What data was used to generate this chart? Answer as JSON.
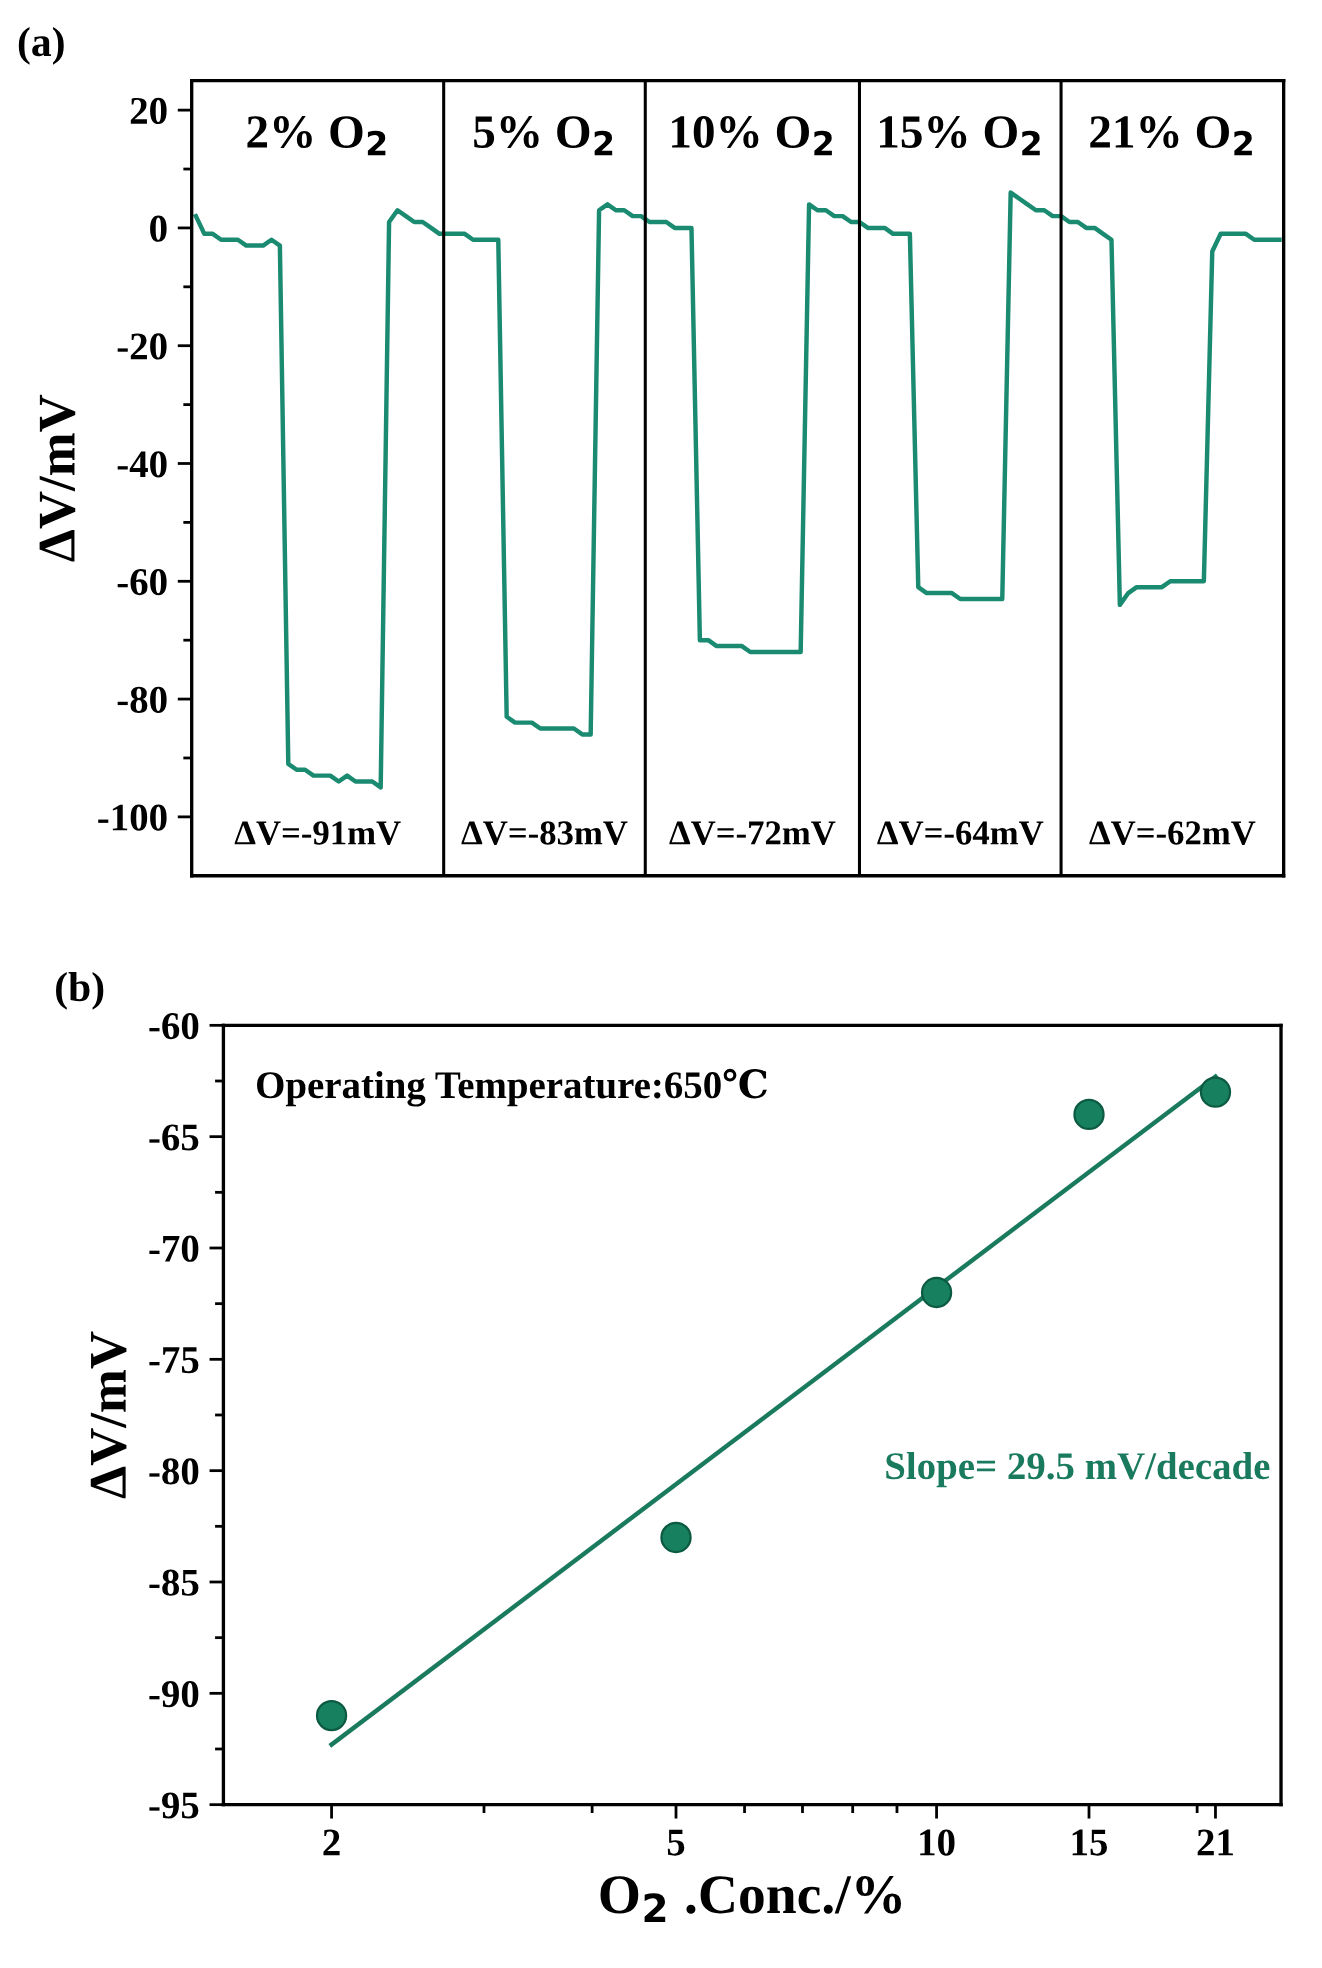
{
  "chart_data": [
    {
      "type": "line",
      "title": "(a)",
      "ylabel": "ΔV/mV",
      "categories": [
        null,
        null,
        null,
        null,
        null,
        null,
        null,
        null,
        null,
        null,
        null,
        null,
        null,
        null,
        null,
        null,
        null,
        null,
        null,
        null,
        null,
        null,
        null,
        null,
        null,
        null,
        null,
        null,
        null,
        null,
        null,
        null,
        null,
        null,
        null,
        null,
        null,
        null,
        null,
        null,
        null,
        null,
        null,
        null,
        null,
        null,
        null,
        null,
        null,
        null,
        null,
        null,
        null,
        null,
        null,
        null,
        null,
        null,
        null,
        null,
        null,
        null,
        null,
        null,
        null,
        null,
        null,
        null,
        null,
        null,
        null,
        null,
        null,
        null,
        null,
        null,
        null,
        null,
        null,
        null,
        null,
        null,
        null,
        null,
        null,
        null,
        null,
        null,
        null,
        null,
        null,
        null,
        null,
        null,
        null,
        null,
        null,
        null,
        null,
        null,
        null,
        null,
        null,
        null,
        null,
        null,
        null,
        null,
        null,
        null,
        null,
        null,
        null,
        null,
        null,
        null,
        null,
        null,
        null,
        null,
        null,
        null,
        null,
        null,
        null,
        null,
        null,
        null,
        null,
        null
      ],
      "series": [
        {
          "color": "#1a8a70",
          "values": [
            2,
            -1,
            -1,
            -2,
            -2,
            -2,
            -3,
            -3,
            -3,
            -2,
            -3,
            -91,
            -92,
            -92,
            -93,
            -93,
            -93,
            -94,
            -93,
            -94,
            -94,
            -94,
            -95,
            1,
            3,
            2,
            1,
            1,
            0,
            -1,
            -1,
            -1,
            -1,
            -2,
            -2,
            -2,
            -2,
            -83,
            -84,
            -84,
            -84,
            -85,
            -85,
            -85,
            -85,
            -85,
            -86,
            -86,
            3,
            4,
            3,
            3,
            2,
            2,
            1,
            1,
            1,
            0,
            0,
            0,
            -70,
            -70,
            -71,
            -71,
            -71,
            -71,
            -72,
            -72,
            -72,
            -72,
            -72,
            -72,
            -72,
            4,
            3,
            3,
            2,
            2,
            1,
            1,
            0,
            0,
            0,
            -1,
            -1,
            -1,
            -61,
            -62,
            -62,
            -62,
            -62,
            -63,
            -63,
            -63,
            -63,
            -63,
            -63,
            6,
            5,
            4,
            3,
            3,
            2,
            2,
            1,
            1,
            0,
            0,
            -1,
            -2,
            -64,
            -62,
            -61,
            -61,
            -61,
            -61,
            -60,
            -60,
            -60,
            -60,
            -60,
            -4,
            -1,
            -1,
            -1,
            -1,
            -2,
            -2,
            -2,
            -2
          ]
        }
      ],
      "ylim": [
        -110,
        25
      ],
      "yticks": [
        -100,
        -80,
        -60,
        -40,
        -20,
        0,
        20,
        {
          "value": -90,
          "label": null
        },
        {
          "value": -70,
          "label": null
        },
        {
          "value": -50,
          "label": null
        },
        {
          "value": -30,
          "label": null
        },
        {
          "value": -10,
          "label": null
        },
        {
          "value": 10,
          "label": null
        }
      ],
      "annotations": [
        "2% O$_{2}$",
        "5% O$_{2}$",
        "10% O$_{2}$",
        "15% O$_{2}$",
        "21% O$_{2}$",
        "ΔV=-91mV",
        "ΔV=-83mV",
        "ΔV=-72mV",
        "ΔV=-64mV",
        "ΔV=-62mV"
      ],
      "tick_labels": "y",
      "grid": false,
      "legend": false,
      "marker": "none",
      "line_style": "solid"
    },
    {
      "type": "scatter",
      "title": "(b)",
      "xlabel": "O$_{2}$ .Conc./%",
      "ylabel": "ΔV/mV",
      "x": [
        2,
        5,
        10,
        15,
        21
      ],
      "series": [
        {
          "type": "scatter",
          "color": "#16805f",
          "values": [
            -91,
            -83,
            -72,
            -64,
            -63
          ]
        },
        {
          "type": "line",
          "color": "#1a7a5e",
          "x": [
            2,
            21
          ],
          "values": [
            -92.3,
            -62.3
          ]
        }
      ],
      "log": "x",
      "xlim": [
        1.5,
        25
      ],
      "xticks": [
        2,
        5,
        10,
        15,
        21,
        {
          "value": 3,
          "label": null
        },
        {
          "value": 4,
          "label": null
        },
        {
          "value": 6,
          "label": null
        },
        {
          "value": 7,
          "label": null
        },
        {
          "value": 8,
          "label": null
        },
        {
          "value": 9,
          "label": null
        },
        {
          "value": 20,
          "label": null
        }
      ],
      "ylim": [
        -95,
        -60
      ],
      "yticks": [
        -95,
        -90,
        -85,
        -80,
        -75,
        -70,
        -65,
        -60,
        {
          "value": -92.5,
          "label": null
        },
        {
          "value": -87.5,
          "label": null
        },
        {
          "value": -82.5,
          "label": null
        },
        {
          "value": -77.5,
          "label": null
        },
        {
          "value": -72.5,
          "label": null
        },
        {
          "value": -67.5,
          "label": null
        },
        {
          "value": -62.5,
          "label": null
        }
      ],
      "annotations": [
        {
          "text": "Operating Temperature:650℃"
        },
        {
          "text": "Slope= 29.5 mV/decade"
        }
      ],
      "grid": false,
      "legend": false
    }
  ]
}
